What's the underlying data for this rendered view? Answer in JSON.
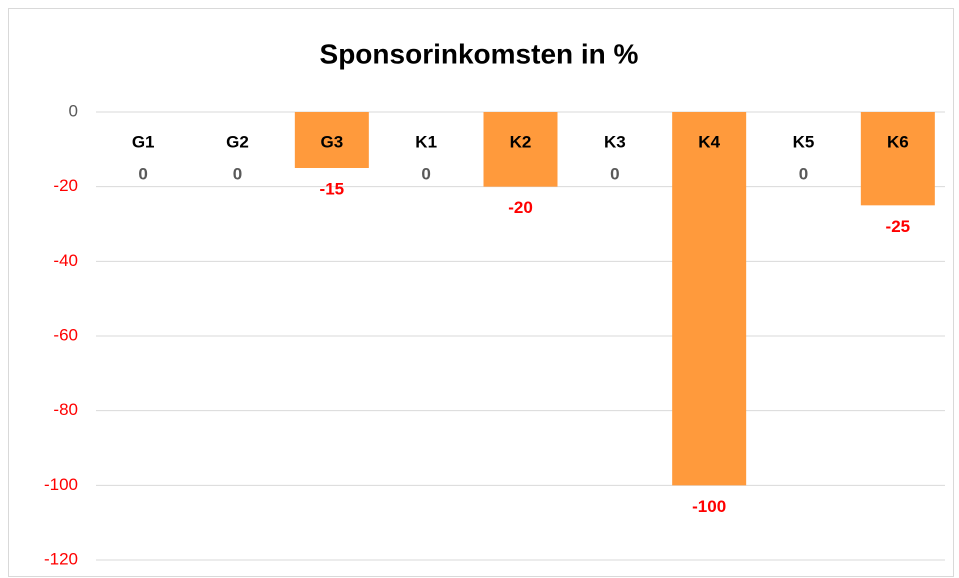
{
  "chart_data": {
    "type": "bar",
    "title": "Sponsorinkomsten in %",
    "categories": [
      "G1",
      "G2",
      "G3",
      "K1",
      "K2",
      "K3",
      "K4",
      "K5",
      "K6"
    ],
    "values": [
      0,
      0,
      -15,
      0,
      -20,
      0,
      -100,
      0,
      -25
    ],
    "color": "#ff9a3c",
    "label_color": "#595959",
    "negative_label_color": "#ff0000",
    "ylim": [
      -120,
      0
    ],
    "yticks": [
      0,
      -20,
      -40,
      -60,
      -80,
      -100,
      -120
    ],
    "grid": true
  }
}
